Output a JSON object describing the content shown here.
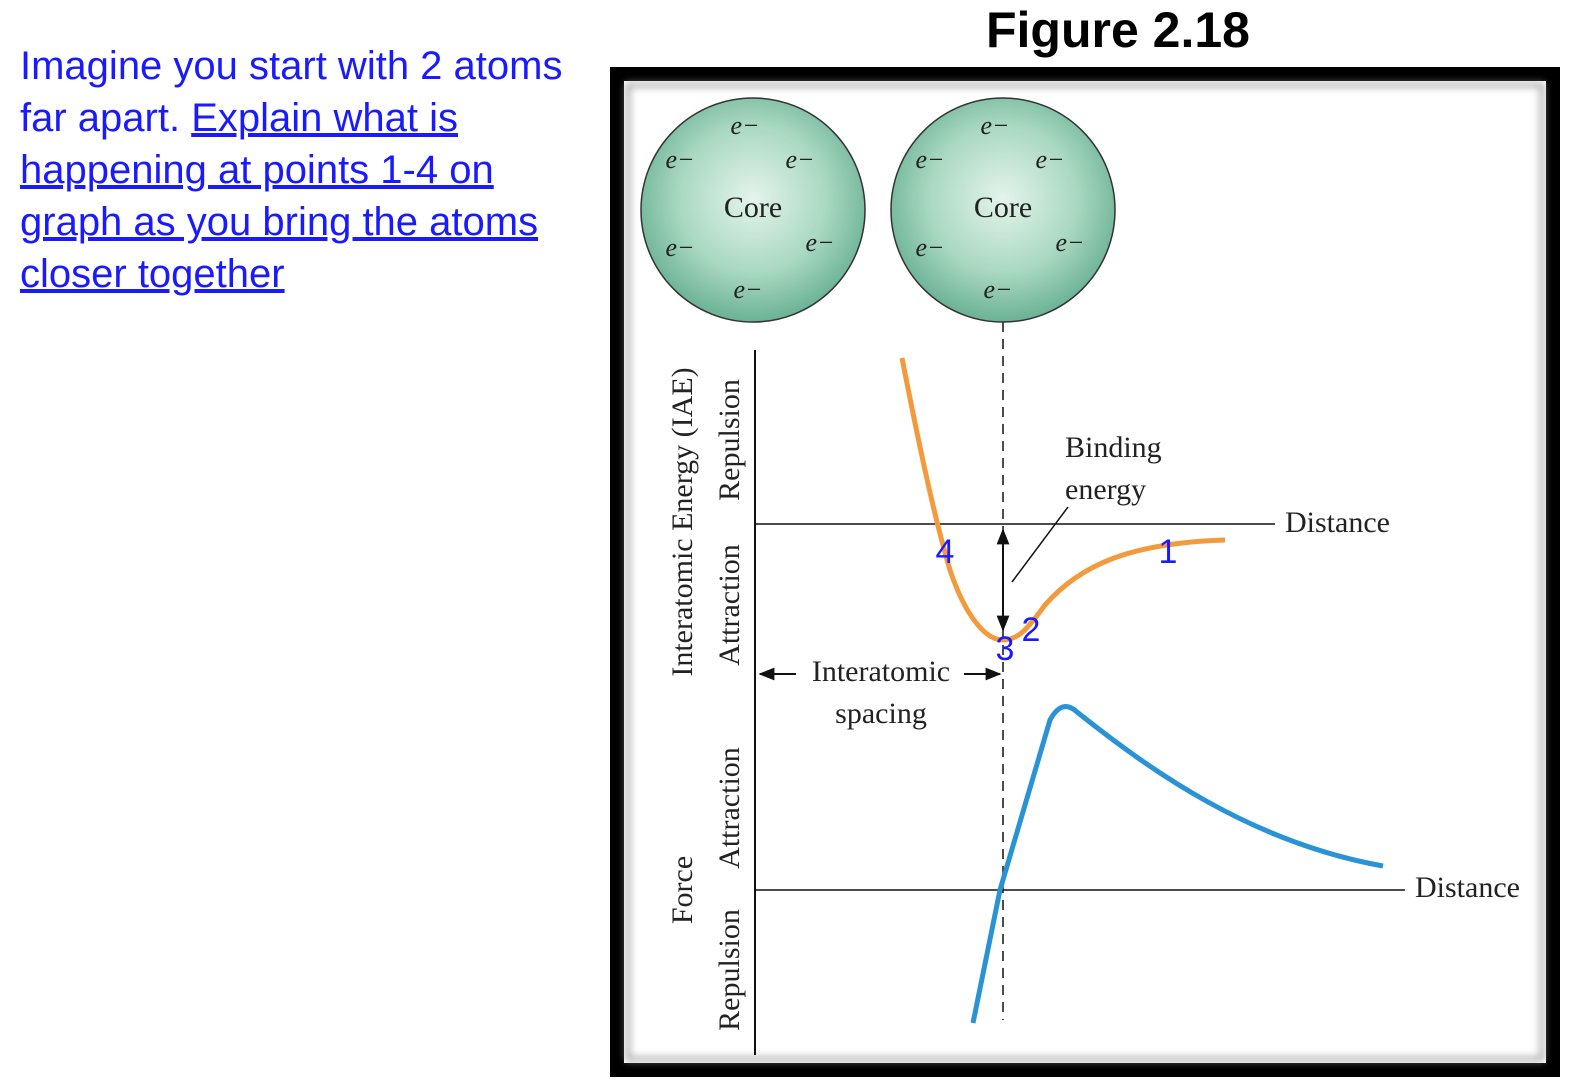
{
  "prompt": {
    "intro": "Imagine you start with 2 atoms far apart.",
    "question": "Explain what is happening at points 1-4 on graph as you bring the atoms closer together"
  },
  "figure": {
    "title": "Figure 2.18",
    "atoms": [
      {
        "core": "Core",
        "electrons": [
          "e−",
          "e−",
          "e−",
          "e−",
          "e−",
          "e−"
        ]
      },
      {
        "core": "Core",
        "electrons": [
          "e−",
          "e−",
          "e−",
          "e−",
          "e−",
          "e−"
        ]
      }
    ],
    "energy_axis": {
      "label": "Interatomic Energy (IAE)",
      "upper": "Repulsion",
      "lower": "Attraction",
      "x_label": "Distance"
    },
    "force_axis": {
      "label": "Force",
      "upper": "Attraction",
      "lower": "Repulsion",
      "x_label": "Distance"
    },
    "binding_energy": [
      "Binding",
      "energy"
    ],
    "interatomic_spacing": [
      "Interatomic",
      "spacing"
    ],
    "points": [
      "1",
      "2",
      "3",
      "4"
    ]
  }
}
